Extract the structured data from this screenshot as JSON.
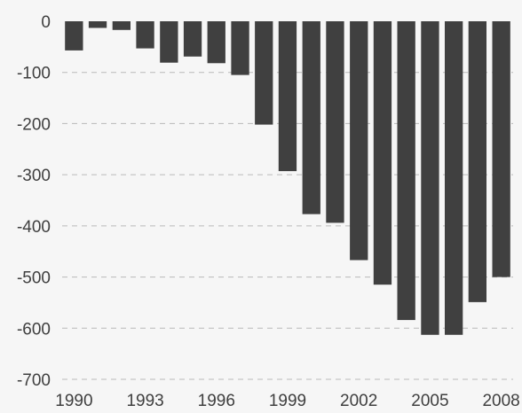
{
  "chart_data": {
    "type": "bar",
    "title": "",
    "xlabel": "",
    "ylabel": "",
    "categories": [
      "1990",
      "1991",
      "1992",
      "1993",
      "1994",
      "1995",
      "1996",
      "1997",
      "1998",
      "1999",
      "2000",
      "2001",
      "2002",
      "2003",
      "2004",
      "2005",
      "2006",
      "2007",
      "2008"
    ],
    "values": [
      -57,
      -13,
      -17,
      -53,
      -81,
      -69,
      -82,
      -105,
      -202,
      -293,
      -377,
      -394,
      -467,
      -515,
      -584,
      -613,
      -613,
      -549,
      -500
    ],
    "ylim": [
      -700,
      0
    ],
    "yticks": [
      0,
      -100,
      -200,
      -300,
      -400,
      -500,
      -600,
      -700
    ],
    "ytick_labels": [
      "0",
      "-100",
      "-200",
      "-300",
      "-400",
      "-500",
      "-600",
      "-700"
    ],
    "xtick_labels": [
      "1990",
      "1993",
      "1996",
      "1999",
      "2002",
      "2005",
      "2008"
    ],
    "grid": true,
    "colors": {
      "bar": "#404040",
      "grid": "#b9b9b9",
      "text": "#3f3f3f",
      "background": "#f6f6f6"
    }
  }
}
